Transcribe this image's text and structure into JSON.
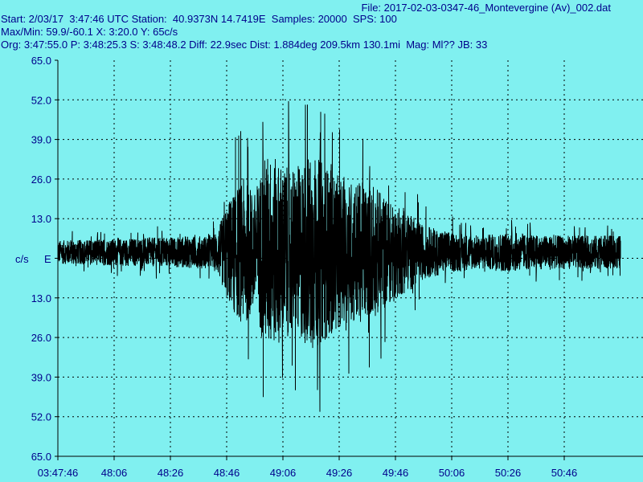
{
  "header": {
    "file": "File: 2017-02-03-0347-46_Montevergine (Av)_002.dat",
    "line1": "Start: 2/03/17  3:47:46 UTC Station:  40.9373N 14.7419E  Samples: 20000  SPS: 100",
    "line2": "Max/Min: 59.9/-60.1 X: 3:20.0 Y: 65c/s",
    "line3": "Org: 3:47:55.0 P: 3:48:25.3 S: 3:48:48.2 Diff: 22.9sec Dist: 1.884deg 209.5km 130.1mi  Mag: Ml?? JB: 33"
  },
  "chart_data": {
    "type": "line",
    "ylabel": "c/s",
    "channel": "E",
    "ylim": [
      -65,
      65
    ],
    "y_tick_labels": [
      "65.0",
      "52.0",
      "39.0",
      "26.0",
      "13.0",
      "",
      "13.0",
      "26.0",
      "39.0",
      "52.0",
      "65.0"
    ],
    "x_tick_labels": [
      "03:47:46",
      "48:06",
      "48:26",
      "48:46",
      "49:06",
      "49:26",
      "49:46",
      "50:06",
      "50:26",
      "50:46"
    ],
    "max": 59.9,
    "min": -60.1,
    "series": [
      {
        "envelope_time_s": [
          0,
          20,
          40,
          55,
          57,
          60,
          63,
          66,
          70,
          74,
          78,
          82,
          86,
          90,
          94,
          98,
          102,
          106,
          110,
          114,
          118,
          122,
          126,
          130,
          140,
          150,
          160,
          170,
          180,
          190,
          200
        ],
        "envelope_amplitude": [
          7,
          8,
          9,
          10,
          14,
          28,
          38,
          44,
          36,
          60,
          55,
          50,
          52,
          60,
          54,
          48,
          42,
          44,
          40,
          38,
          30,
          26,
          22,
          16,
          12,
          10,
          12,
          10,
          10,
          10,
          10
        ]
      }
    ],
    "grid": true,
    "color": "#000000"
  }
}
